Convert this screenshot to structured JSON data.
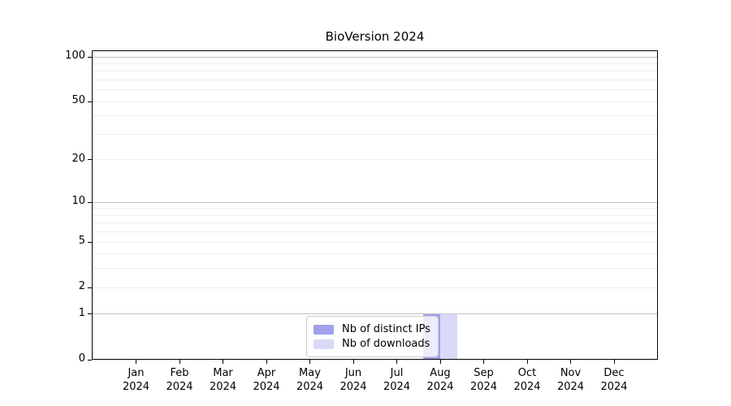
{
  "figure": {
    "title": "BioVersion 2024",
    "background_color": "#ffffff"
  },
  "chart_data": {
    "type": "bar",
    "title": "BioVersion 2024",
    "xlabel": "",
    "ylabel": "",
    "categories": [
      "Jan 2024",
      "Feb 2024",
      "Mar 2024",
      "Apr 2024",
      "May 2024",
      "Jun 2024",
      "Jul 2024",
      "Aug 2024",
      "Sep 2024",
      "Oct 2024",
      "Nov 2024",
      "Dec 2024"
    ],
    "series": [
      {
        "name": "Nb of distinct IPs",
        "color": "#a1a1ed",
        "values": [
          0,
          0,
          0,
          0,
          0,
          0,
          0,
          1,
          0,
          0,
          0,
          0
        ]
      },
      {
        "name": "Nb of downloads",
        "color": "#d9d9f8",
        "values": [
          0,
          0,
          0,
          0,
          0,
          0,
          0,
          1,
          0,
          0,
          0,
          0
        ]
      }
    ],
    "yscale": "log1p",
    "ylim": [
      0,
      110
    ],
    "yticks_labeled": [
      0,
      1,
      2,
      5,
      10,
      20,
      50,
      100
    ],
    "gridlines_major": [
      1,
      10,
      100
    ],
    "gridlines_minor": [
      2,
      3,
      4,
      5,
      6,
      7,
      8,
      9,
      20,
      30,
      40,
      50,
      60,
      70,
      80,
      90
    ],
    "grid": "horizontal",
    "legend_position": "lower-center"
  },
  "colors": {
    "grid_major": "#c3c3c3",
    "grid_minor": "#ececec",
    "axis": "#000000",
    "legend_border": "#cccccc",
    "bar_distinct_ips": "#a1a1ed",
    "bar_downloads": "#d9d9f8"
  }
}
